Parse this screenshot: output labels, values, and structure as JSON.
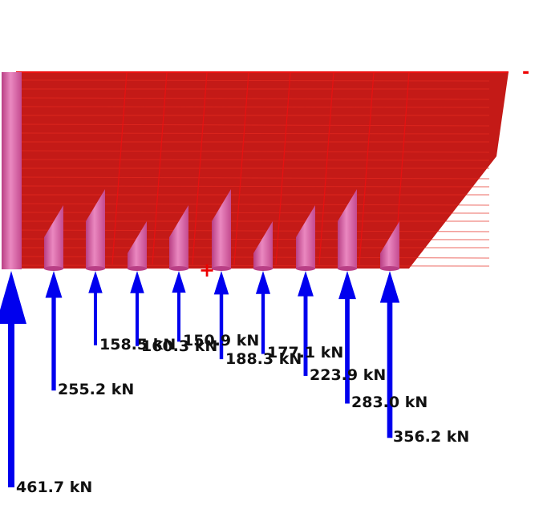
{
  "colors": {
    "wall_fill": "#c41a17",
    "wall_stripe": "#e52a20",
    "wall_edge": "#ee1010",
    "pile": "#d9559f",
    "pile_dark": "#b93f85",
    "pile_light": "#ea88c0",
    "arrow": "#0000ee",
    "plus": "#ee0000",
    "minus": "#ee0000"
  },
  "markers": {
    "plus": "+",
    "minus": "-"
  },
  "reactions": [
    {
      "label": "461.7 kN",
      "value_kN": 461.7
    },
    {
      "label": "255.2 kN",
      "value_kN": 255.2
    },
    {
      "label": "158.5 kN",
      "value_kN": 158.5
    },
    {
      "label": "160.3 kN",
      "value_kN": 160.3
    },
    {
      "label": "150.9 kN",
      "value_kN": 150.9
    },
    {
      "label": "188.3 kN",
      "value_kN": 188.3
    },
    {
      "label": "177.1 kN",
      "value_kN": 177.1
    },
    {
      "label": "223.9 kN",
      "value_kN": 223.9
    },
    {
      "label": "283.0 kN",
      "value_kN": 283.0
    },
    {
      "label": "356.2 kN",
      "value_kN": 356.2
    }
  ]
}
